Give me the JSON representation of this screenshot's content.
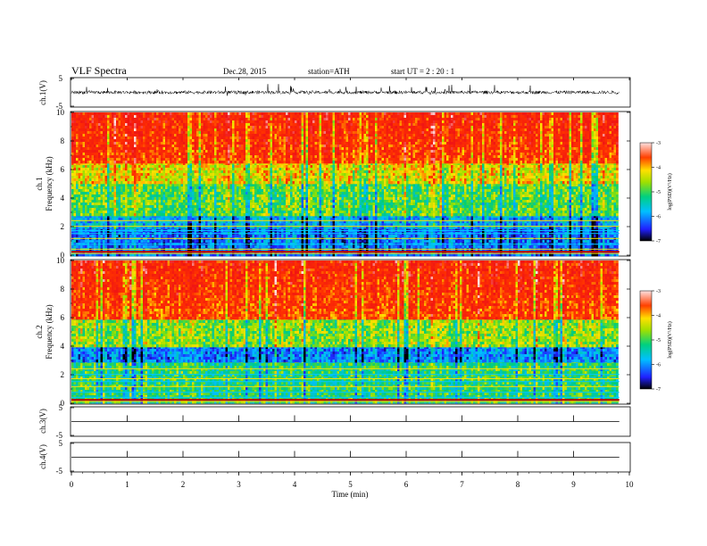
{
  "header": {
    "title": "VLF  Spectra",
    "date": "Dec.28, 2015",
    "station": "station=ATH",
    "start": "start  UT  =   2  : 20 : 1"
  },
  "chart_data": [
    {
      "type": "line",
      "panel": "ch1-waveform",
      "ylabel": "ch.1(V)",
      "ylim": [
        -5,
        5
      ],
      "y_ticks": [
        "5",
        "-5"
      ],
      "description_values": {
        "baseline_v": 0.0,
        "noise_amplitude_v": 0.6,
        "spike_max_v": 2.2
      }
    },
    {
      "type": "heatmap",
      "panel": "ch1-spectrogram",
      "ylabel": "ch.1\nFrequency  (kHz)",
      "ylabel_line1": "ch.1",
      "ylabel_line2": "Frequency  (kHz)",
      "ylim": [
        0,
        10
      ],
      "y_ticks": [
        "10",
        "8",
        "6",
        "4",
        "2",
        "0"
      ],
      "colorbar": {
        "label": "log(PSD)(V²/Hz)",
        "range": [
          -7,
          -3
        ],
        "ticks": [
          "-3",
          "-4",
          "-5",
          "-6",
          "-7"
        ]
      },
      "bands": [
        {
          "f_from": 0,
          "f_to": 2,
          "log_psd": -6.5
        },
        {
          "f_from": 2,
          "f_to": 2.8,
          "log_psd": -6.2
        },
        {
          "f_from": 2.8,
          "f_to": 5,
          "log_psd": -5.4
        },
        {
          "f_from": 5,
          "f_to": 6.5,
          "log_psd": -4.9
        },
        {
          "f_from": 6.5,
          "f_to": 10,
          "log_psd": -4.3
        }
      ]
    },
    {
      "type": "heatmap",
      "panel": "ch2-spectrogram",
      "ylabel_line1": "ch.2",
      "ylabel_line2": "Frequency  (kHz)",
      "ylim": [
        0,
        10
      ],
      "y_ticks": [
        "10",
        "8",
        "6",
        "4",
        "2",
        "0"
      ],
      "colorbar": {
        "label": "log(PSD)(V²/Hz)",
        "range": [
          -7,
          -3
        ],
        "ticks": [
          "-3",
          "-4",
          "-5",
          "-6",
          "-7"
        ]
      },
      "bands": [
        {
          "f_from": 0,
          "f_to": 3,
          "log_psd": -5.6
        },
        {
          "f_from": 3,
          "f_to": 4,
          "log_psd": -6.4
        },
        {
          "f_from": 4,
          "f_to": 6,
          "log_psd": -5.2
        },
        {
          "f_from": 6,
          "f_to": 10,
          "log_psd": -4.3
        }
      ]
    },
    {
      "type": "line",
      "panel": "ch3-waveform",
      "ylabel": "ch.3(V)",
      "ylim": [
        -5,
        5
      ],
      "y_ticks": [
        "5",
        "-5"
      ],
      "baseline_v": 0.0
    },
    {
      "type": "line",
      "panel": "ch4-waveform",
      "ylabel": "ch.4(V)",
      "ylim": [
        -5,
        5
      ],
      "y_ticks": [
        "5",
        "-5"
      ],
      "baseline_v": 0.0
    }
  ],
  "x_axis": {
    "label": "Time  (min)",
    "range": [
      0,
      10
    ],
    "ticks": [
      "0",
      "1",
      "2",
      "3",
      "4",
      "5",
      "6",
      "7",
      "8",
      "9",
      "10"
    ],
    "data_end_min": 9.82
  }
}
